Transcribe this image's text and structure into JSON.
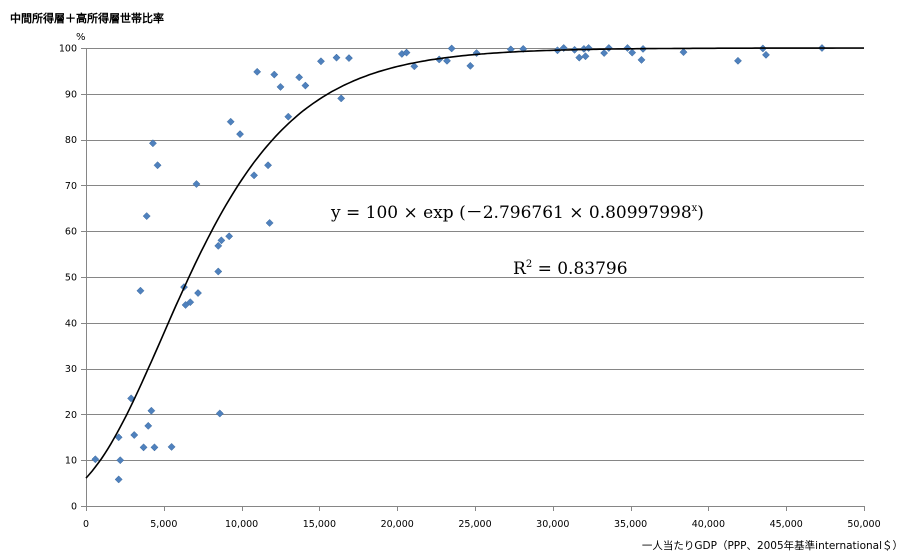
{
  "chart_data": {
    "type": "scatter",
    "title": "中間所得層＋高所得層世帯比率",
    "ylabel": "%",
    "xlabel": "一人当たりGDP（PPP、2005年基準international＄）",
    "xlim": [
      0,
      50000
    ],
    "ylim": [
      0,
      100
    ],
    "x_ticks": [
      0,
      5000,
      10000,
      15000,
      20000,
      25000,
      30000,
      35000,
      40000,
      45000,
      50000
    ],
    "x_tick_labels": [
      "0",
      "5,000",
      "10,000",
      "15,000",
      "20,000",
      "25,000",
      "30,000",
      "35,000",
      "40,000",
      "45,000",
      "50,000"
    ],
    "y_ticks": [
      0,
      10,
      20,
      30,
      40,
      50,
      60,
      70,
      80,
      90,
      100
    ],
    "y_tick_labels": [
      "0",
      "10",
      "20",
      "30",
      "40",
      "50",
      "60",
      "70",
      "80",
      "90",
      "100"
    ],
    "grid": true,
    "legend": "none",
    "marker_color": "#4f81bd",
    "trendline": {
      "type": "gompertz",
      "a": 100,
      "b": 2.796761,
      "c": 0.80997998,
      "x_unit": 1000,
      "color": "#000000"
    },
    "annotations": {
      "eq_lead": "y = 100 × exp (－2.796761 × 0.80997998",
      "eq_sup": "x",
      "eq_tail": ")",
      "r2_lead": "R",
      "r2_sup": "2",
      "r2_tail": " = 0.83796"
    },
    "points": [
      [
        600,
        10.2
      ],
      [
        2100,
        15
      ],
      [
        2100,
        5.8
      ],
      [
        2200,
        10
      ],
      [
        2900,
        23.5
      ],
      [
        3100,
        15.5
      ],
      [
        3500,
        47
      ],
      [
        3700,
        12.8
      ],
      [
        3900,
        63.3
      ],
      [
        4000,
        17.5
      ],
      [
        4200,
        20.8
      ],
      [
        4300,
        79.2
      ],
      [
        4400,
        12.8
      ],
      [
        4600,
        74.4
      ],
      [
        5500,
        12.9
      ],
      [
        6300,
        47.8
      ],
      [
        6400,
        43.9
      ],
      [
        6700,
        44.5
      ],
      [
        7100,
        70.3
      ],
      [
        7200,
        46.5
      ],
      [
        8500,
        51.2
      ],
      [
        8500,
        56.8
      ],
      [
        8600,
        20.2
      ],
      [
        8700,
        58
      ],
      [
        9200,
        58.9
      ],
      [
        9300,
        83.9
      ],
      [
        9900,
        81.2
      ],
      [
        10800,
        72.2
      ],
      [
        11000,
        94.8
      ],
      [
        11700,
        74.4
      ],
      [
        11800,
        61.8
      ],
      [
        12100,
        94.2
      ],
      [
        12500,
        91.5
      ],
      [
        13000,
        85
      ],
      [
        13700,
        93.6
      ],
      [
        14100,
        91.8
      ],
      [
        15100,
        97.1
      ],
      [
        16100,
        97.9
      ],
      [
        16400,
        89
      ],
      [
        16900,
        97.8
      ],
      [
        20300,
        98.7
      ],
      [
        20600,
        99
      ],
      [
        21100,
        96
      ],
      [
        22700,
        97.5
      ],
      [
        23200,
        97.2
      ],
      [
        23500,
        99.9
      ],
      [
        24700,
        96.1
      ],
      [
        25100,
        98.9
      ],
      [
        27300,
        99.7
      ],
      [
        28100,
        99.8
      ],
      [
        30300,
        99.5
      ],
      [
        30700,
        100
      ],
      [
        31400,
        99.6
      ],
      [
        31700,
        97.9
      ],
      [
        32000,
        99.8
      ],
      [
        32100,
        98.2
      ],
      [
        32300,
        100
      ],
      [
        33300,
        98.9
      ],
      [
        33600,
        100
      ],
      [
        34800,
        100
      ],
      [
        35100,
        99
      ],
      [
        35700,
        97.4
      ],
      [
        35800,
        99.8
      ],
      [
        38400,
        99.1
      ],
      [
        41900,
        97.2
      ],
      [
        43500,
        99.9
      ],
      [
        43700,
        98.5
      ],
      [
        47300,
        100
      ]
    ]
  }
}
